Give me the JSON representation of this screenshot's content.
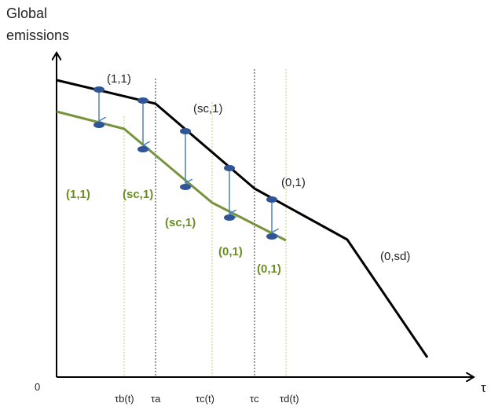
{
  "axes": {
    "y_title_line1": "Global",
    "y_title_line2": "emissions",
    "origin_label": "0",
    "x_title": "τ"
  },
  "x_ticks": [
    {
      "id": "tau-b-t",
      "label": "τb(t)",
      "style": "dotted-green"
    },
    {
      "id": "tau-a",
      "label": "τa",
      "style": "dotted-black"
    },
    {
      "id": "tau-c-t",
      "label": "τc(t)",
      "style": "dotted-green"
    },
    {
      "id": "tau-c",
      "label": "τc",
      "style": "dotted-black"
    },
    {
      "id": "tau-d-t",
      "label": "τd(t)",
      "style": "dotted-green"
    }
  ],
  "black_path_labels": [
    "(1,1)",
    "(sc,1)",
    "(0,1)",
    "(0,sd)"
  ],
  "green_path_labels": [
    "(1,1)",
    "(sc,1)",
    "(sc,1)",
    "(0,1)",
    "(0,1)"
  ],
  "colors": {
    "black_path": "#000000",
    "green_path": "#77933c",
    "green_label": "#6b8e23",
    "arrow": "#4f81bd",
    "marker": "#2f5597",
    "dotted_black": "#555555",
    "dotted_green": "#c9d98e"
  }
}
